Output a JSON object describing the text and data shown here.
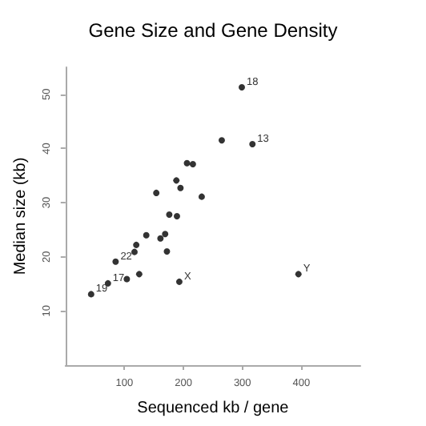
{
  "chart_data": {
    "type": "scatter",
    "title": "Gene Size and Gene Density",
    "xlabel": "Sequenced kb / gene",
    "ylabel": "Median size (kb)",
    "x": [
      43.5,
      72,
      85,
      104,
      125,
      117,
      120,
      137,
      154,
      161,
      169,
      172,
      176,
      189,
      188,
      195,
      193,
      206,
      216,
      231,
      265,
      299,
      317,
      395
    ],
    "series": [
      {
        "color": "#000000",
        "values": [
          13.1,
          15.1,
          19.1,
          15.9,
          16.8,
          20.9,
          22.2,
          24,
          31.8,
          23.4,
          24.2,
          21,
          27.8,
          27.5,
          34.1,
          32.7,
          15.4,
          37.3,
          37.1,
          31.1,
          41.5,
          51.3,
          40.8,
          16.8
        ]
      }
    ],
    "annotations": [
      {
        "text": "19",
        "x": 43.5,
        "y": 13.1
      },
      {
        "text": "17",
        "x": 72,
        "y": 15.1
      },
      {
        "text": "22",
        "x": 85,
        "y": 19.1
      },
      {
        "text": "X",
        "x": 193,
        "y": 15.4
      },
      {
        "text": "18",
        "x": 299,
        "y": 51.3
      },
      {
        "text": "13",
        "x": 317,
        "y": 40.8
      },
      {
        "text": "Y",
        "x": 395,
        "y": 16.8
      }
    ],
    "xlim": [
      0,
      500
    ],
    "xticks": [
      100,
      200,
      300,
      400
    ],
    "ylim": [
      0,
      55
    ],
    "yticks": [
      10,
      20,
      30,
      40,
      50
    ],
    "marker": "circle",
    "grid": false
  }
}
